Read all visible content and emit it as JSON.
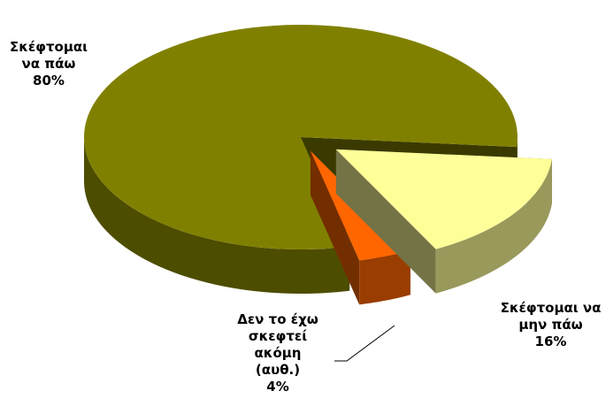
{
  "chart_data": {
    "type": "pie",
    "categories": [
      "Σκέφτομαι να πάω",
      "Σκέφτομαι να μην πάω",
      "Δεν το έχω σκεφτεί ακόμη (αυθ.)"
    ],
    "values": [
      80,
      16,
      4
    ],
    "value_labels": [
      "80%",
      "16%",
      "4%"
    ],
    "colors": [
      "#808000",
      "#ffff99",
      "#ff6600"
    ]
  }
}
